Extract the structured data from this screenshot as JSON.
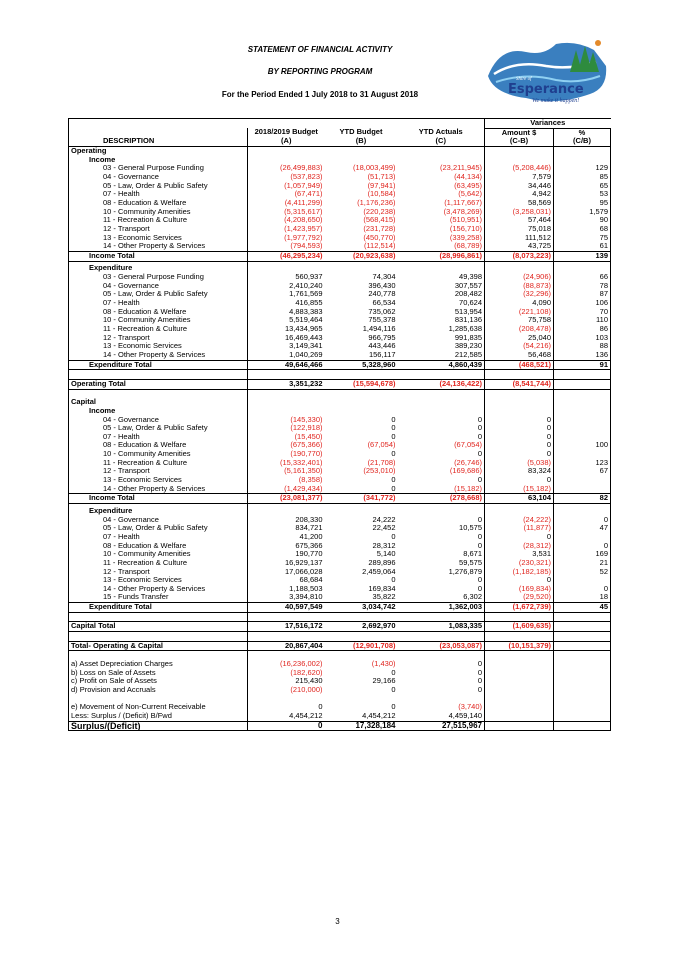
{
  "header": {
    "title": "STATEMENT OF FINANCIAL ACTIVITY",
    "subtitle": "BY REPORTING PROGRAM",
    "period": "For the Period Ended 1 July 2018 to 31 August 2018"
  },
  "logo": {
    "name": "Esperance",
    "prefix": "Shire of",
    "tagline": "We make it happen!",
    "colors": {
      "navy": "#1f3f8f",
      "green": "#2e8b3e",
      "orange": "#e48a2a",
      "sky": "#4aa3df"
    }
  },
  "table": {
    "variances_label": "Variances",
    "columns": {
      "description": "DESCRIPTION",
      "budget": "2018/2019 Budget",
      "budget_code": "(A)",
      "ytd_budget": "YTD Budget",
      "ytd_budget_code": "(B)",
      "ytd_actuals": "YTD Actuals",
      "ytd_actuals_code": "(C)",
      "amount": "Amount $",
      "amount_code": "(C-B)",
      "pct": "%",
      "pct_code": "(C/B)"
    },
    "rows": [
      {
        "label": "Operating",
        "kind": "section"
      },
      {
        "label": "Income",
        "kind": "group"
      },
      {
        "label": "03 - General Purpose Funding",
        "kind": "item",
        "vals": [
          "(26,499,883)",
          "(18,003,499)",
          "(23,211,945)",
          "(5,208,446)",
          "129"
        ]
      },
      {
        "label": "04 - Governance",
        "kind": "item",
        "vals": [
          "(537,823)",
          "(51,713)",
          "(44,134)",
          "7,579",
          "85"
        ]
      },
      {
        "label": "05 - Law, Order & Public Safety",
        "kind": "item",
        "vals": [
          "(1,057,949)",
          "(97,941)",
          "(63,495)",
          "34,446",
          "65"
        ]
      },
      {
        "label": "07 - Health",
        "kind": "item",
        "vals": [
          "(67,471)",
          "(10,584)",
          "(5,642)",
          "4,942",
          "53"
        ]
      },
      {
        "label": "08 - Education & Welfare",
        "kind": "item",
        "vals": [
          "(4,411,299)",
          "(1,176,236)",
          "(1,117,667)",
          "58,569",
          "95"
        ]
      },
      {
        "label": "10 - Community Amenities",
        "kind": "item",
        "vals": [
          "(5,315,617)",
          "(220,238)",
          "(3,478,269)",
          "(3,258,031)",
          "1,579"
        ]
      },
      {
        "label": "11 - Recreation & Culture",
        "kind": "item",
        "vals": [
          "(4,208,650)",
          "(568,415)",
          "(510,951)",
          "57,464",
          "90"
        ]
      },
      {
        "label": "12 - Transport",
        "kind": "item",
        "vals": [
          "(1,423,957)",
          "(231,728)",
          "(156,710)",
          "75,018",
          "68"
        ]
      },
      {
        "label": "13 - Economic Services",
        "kind": "item",
        "vals": [
          "(1,977,792)",
          "(450,770)",
          "(339,258)",
          "111,512",
          "75"
        ]
      },
      {
        "label": "14 - Other Property & Services",
        "kind": "item",
        "vals": [
          "(794,593)",
          "(112,514)",
          "(68,789)",
          "43,725",
          "61"
        ]
      },
      {
        "label": "Income Total",
        "kind": "total",
        "vals": [
          "(46,295,234)",
          "(20,923,638)",
          "(28,996,861)",
          "(8,073,223)",
          "139"
        ]
      },
      {
        "label": "Expenditure",
        "kind": "group",
        "gap": true
      },
      {
        "label": "03 - General Purpose Funding",
        "kind": "item",
        "vals": [
          "560,937",
          "74,304",
          "49,398",
          "(24,906)",
          "66"
        ]
      },
      {
        "label": "04 - Governance",
        "kind": "item",
        "vals": [
          "2,410,240",
          "396,430",
          "307,557",
          "(88,873)",
          "78"
        ]
      },
      {
        "label": "05 - Law, Order & Public Safety",
        "kind": "item",
        "vals": [
          "1,761,569",
          "240,778",
          "208,482",
          "(32,296)",
          "87"
        ]
      },
      {
        "label": "07 - Health",
        "kind": "item",
        "vals": [
          "416,855",
          "66,534",
          "70,624",
          "4,090",
          "106"
        ]
      },
      {
        "label": "08 - Education & Welfare",
        "kind": "item",
        "vals": [
          "4,883,383",
          "735,062",
          "513,954",
          "(221,108)",
          "70"
        ]
      },
      {
        "label": "10 - Community Amenities",
        "kind": "item",
        "vals": [
          "5,519,464",
          "755,378",
          "831,136",
          "75,758",
          "110"
        ]
      },
      {
        "label": "11 - Recreation & Culture",
        "kind": "item",
        "vals": [
          "13,434,965",
          "1,494,116",
          "1,285,638",
          "(208,478)",
          "86"
        ]
      },
      {
        "label": "12 - Transport",
        "kind": "item",
        "vals": [
          "16,469,443",
          "966,795",
          "991,835",
          "25,040",
          "103"
        ]
      },
      {
        "label": "13 - Economic Services",
        "kind": "item",
        "vals": [
          "3,149,341",
          "443,446",
          "389,230",
          "(54,216)",
          "88"
        ]
      },
      {
        "label": "14 - Other Property & Services",
        "kind": "item",
        "vals": [
          "1,040,269",
          "156,117",
          "212,585",
          "56,468",
          "136"
        ]
      },
      {
        "label": "Expenditure Total",
        "kind": "total",
        "vals": [
          "49,646,466",
          "5,328,960",
          "4,860,439",
          "(468,521)",
          "91"
        ]
      },
      {
        "label": "",
        "kind": "blank"
      },
      {
        "label": "Operating Total",
        "kind": "grand",
        "vals": [
          "3,351,232",
          "(15,594,678)",
          "(24,136,422)",
          "(8,541,744)",
          ""
        ]
      },
      {
        "label": "",
        "kind": "blank"
      },
      {
        "label": "Capital",
        "kind": "section"
      },
      {
        "label": "Income",
        "kind": "group"
      },
      {
        "label": "04 - Governance",
        "kind": "item",
        "vals": [
          "(145,330)",
          "0",
          "0",
          "0",
          ""
        ]
      },
      {
        "label": "05 - Law, Order & Public Safety",
        "kind": "item",
        "vals": [
          "(122,918)",
          "0",
          "0",
          "0",
          ""
        ]
      },
      {
        "label": "07 - Health",
        "kind": "item",
        "vals": [
          "(15,450)",
          "0",
          "0",
          "0",
          ""
        ]
      },
      {
        "label": "08 - Education & Welfare",
        "kind": "item",
        "vals": [
          "(675,366)",
          "(67,054)",
          "(67,054)",
          "0",
          "100"
        ]
      },
      {
        "label": "10 - Community Amenities",
        "kind": "item",
        "vals": [
          "(190,770)",
          "0",
          "0",
          "0",
          ""
        ]
      },
      {
        "label": "11 - Recreation & Culture",
        "kind": "item",
        "vals": [
          "(15,332,401)",
          "(21,708)",
          "(26,746)",
          "(5,038)",
          "123"
        ]
      },
      {
        "label": "12 - Transport",
        "kind": "item",
        "vals": [
          "(5,161,350)",
          "(253,010)",
          "(169,686)",
          "83,324",
          "67"
        ]
      },
      {
        "label": "13 - Economic Services",
        "kind": "item",
        "vals": [
          "(8,358)",
          "0",
          "0",
          "0",
          ""
        ]
      },
      {
        "label": "14 - Other Property & Services",
        "kind": "item",
        "vals": [
          "(1,429,434)",
          "0",
          "(15,182)",
          "(15,182)",
          ""
        ]
      },
      {
        "label": "Income Total",
        "kind": "total",
        "vals": [
          "(23,081,377)",
          "(341,772)",
          "(278,668)",
          "63,104",
          "82"
        ]
      },
      {
        "label": "Expenditure",
        "kind": "group",
        "gap": true
      },
      {
        "label": "04 - Governance",
        "kind": "item",
        "vals": [
          "208,330",
          "24,222",
          "0",
          "(24,222)",
          "0"
        ]
      },
      {
        "label": "05 - Law, Order & Public Safety",
        "kind": "item",
        "vals": [
          "834,721",
          "22,452",
          "10,575",
          "(11,877)",
          "47"
        ]
      },
      {
        "label": "07 - Health",
        "kind": "item",
        "vals": [
          "41,200",
          "0",
          "0",
          "0",
          ""
        ]
      },
      {
        "label": "08 - Education & Welfare",
        "kind": "item",
        "vals": [
          "675,366",
          "28,312",
          "0",
          "(28,312)",
          "0"
        ]
      },
      {
        "label": "10 - Community Amenities",
        "kind": "item",
        "vals": [
          "190,770",
          "5,140",
          "8,671",
          "3,531",
          "169"
        ]
      },
      {
        "label": "11 - Recreation & Culture",
        "kind": "item",
        "vals": [
          "16,929,137",
          "289,896",
          "59,575",
          "(230,321)",
          "21"
        ]
      },
      {
        "label": "12 - Transport",
        "kind": "item",
        "vals": [
          "17,066,028",
          "2,459,064",
          "1,276,879",
          "(1,182,185)",
          "52"
        ]
      },
      {
        "label": "13 - Economic Services",
        "kind": "item",
        "vals": [
          "68,684",
          "0",
          "0",
          "0",
          ""
        ]
      },
      {
        "label": "14 - Other Property & Services",
        "kind": "item",
        "vals": [
          "1,188,503",
          "169,834",
          "0",
          "(169,834)",
          "0"
        ]
      },
      {
        "label": "15 - Funds Transfer",
        "kind": "item",
        "vals": [
          "3,394,810",
          "35,822",
          "6,302",
          "(29,520)",
          "18"
        ]
      },
      {
        "label": "Expenditure Total",
        "kind": "total",
        "vals": [
          "40,597,549",
          "3,034,742",
          "1,362,003",
          "(1,672,739)",
          "45"
        ]
      },
      {
        "label": "",
        "kind": "blank"
      },
      {
        "label": "Capital Total",
        "kind": "grand",
        "vals": [
          "17,516,172",
          "2,692,970",
          "1,083,335",
          "(1,609,635)",
          ""
        ]
      },
      {
        "label": "",
        "kind": "blank"
      },
      {
        "label": "Total- Operating & Capital",
        "kind": "grand",
        "vals": [
          "20,867,404",
          "(12,901,708)",
          "(23,053,087)",
          "(10,151,379)",
          ""
        ]
      },
      {
        "label": "",
        "kind": "blank"
      },
      {
        "label": "a) Asset Depreciation Charges",
        "kind": "adj",
        "vals": [
          "(16,236,002)",
          "(1,430)",
          "0",
          "",
          ""
        ]
      },
      {
        "label": "b) Loss on Sale of Assets",
        "kind": "adj",
        "vals": [
          "(182,620)",
          "0",
          "0",
          "",
          ""
        ]
      },
      {
        "label": "c) Profit on Sale of Assets",
        "kind": "adj",
        "vals": [
          "215,430",
          "29,166",
          "0",
          "",
          ""
        ]
      },
      {
        "label": "d) Provision and Accruals",
        "kind": "adj",
        "vals": [
          "(210,000)",
          "0",
          "0",
          "",
          ""
        ]
      },
      {
        "label": "",
        "kind": "blank"
      },
      {
        "label": "e) Movement of Non-Current Receivable",
        "kind": "adj",
        "vals": [
          "0",
          "0",
          "(3,740)",
          "",
          ""
        ]
      },
      {
        "label": "Less: Surplus / (Deficit) B/Fwd",
        "kind": "adj",
        "vals": [
          "4,454,212",
          "4,454,212",
          "4,459,140",
          "",
          ""
        ]
      },
      {
        "label": "Surplus/(Deficit)",
        "kind": "surplus",
        "vals": [
          "0",
          "17,328,184",
          "27,515,967",
          "",
          ""
        ]
      }
    ]
  },
  "page_number": "3"
}
